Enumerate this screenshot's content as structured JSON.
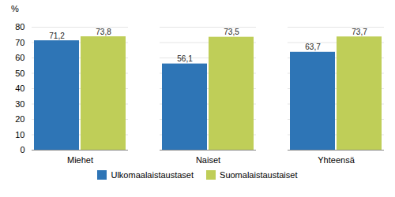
{
  "chart_data": {
    "type": "bar",
    "categories": [
      "Miehet",
      "Naiset",
      "Yhteensä"
    ],
    "series": [
      {
        "name": "Ulkomaalaistaustaset",
        "color": "#2E75B6",
        "values": [
          71.2,
          56.1,
          63.7
        ],
        "value_labels": [
          "71,2",
          "56,1",
          "63,7"
        ]
      },
      {
        "name": "Suomalaistaustaiset",
        "color": "#BFCE58",
        "values": [
          73.8,
          73.5,
          73.7
        ],
        "value_labels": [
          "73,8",
          "73,5",
          "73,7"
        ]
      }
    ],
    "ylabel": "%",
    "ylim": [
      0,
      80
    ],
    "yticks": [
      0,
      10,
      20,
      30,
      40,
      50,
      60,
      70,
      80
    ],
    "grid": true,
    "legend": "bottom",
    "data_labels": true
  }
}
